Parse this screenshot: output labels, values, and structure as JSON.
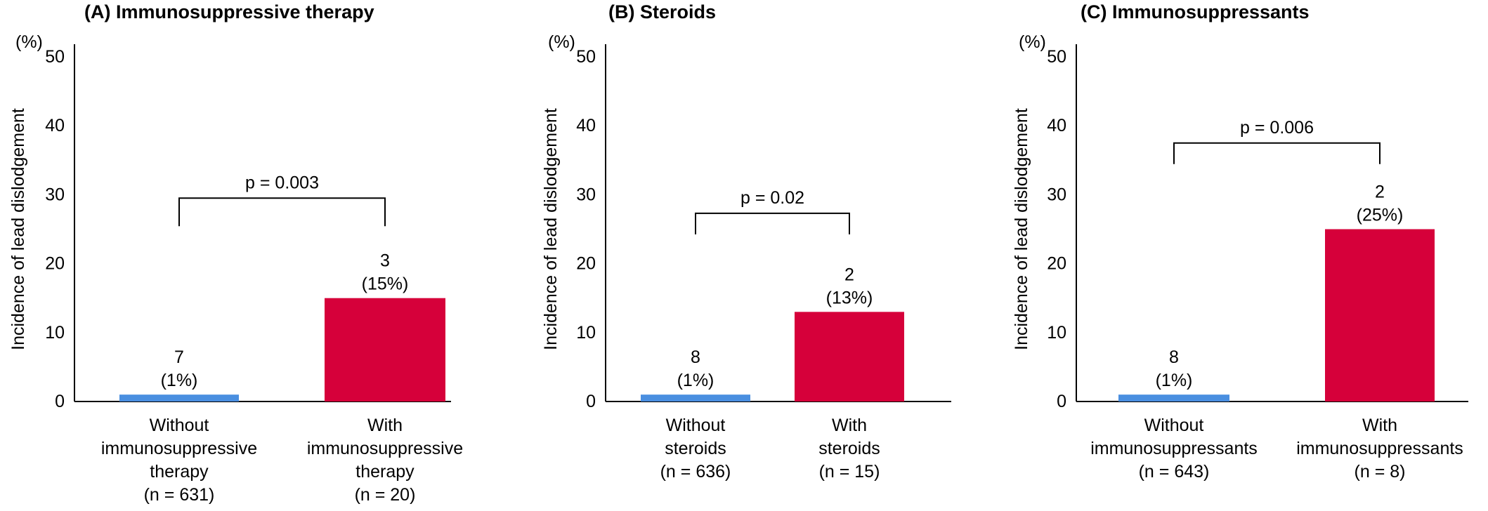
{
  "chart_data": [
    {
      "type": "bar",
      "title": "(A) Immunosuppressive therapy",
      "unit_label": "(%)",
      "ylabel": "Incidence of lead dislodgement",
      "ylim": [
        0,
        50
      ],
      "yticks": [
        "0",
        "10",
        "20",
        "30",
        "40",
        "50"
      ],
      "categories": [
        [
          "Without",
          "immunosuppressive",
          "therapy",
          "(n = 631)"
        ],
        [
          "With",
          "immunosuppressive",
          "therapy",
          "(n = 20)"
        ]
      ],
      "values": [
        1,
        15
      ],
      "data_labels": [
        [
          "7",
          "(1%)"
        ],
        [
          "3",
          "(15%)"
        ]
      ],
      "colors": [
        "#4a8fe0",
        "#d6003a"
      ],
      "p_value": "p = 0.003",
      "p_bracket_y": 29.5
    },
    {
      "type": "bar",
      "title": "(B) Steroids",
      "unit_label": "(%)",
      "ylabel": "Incidence of lead dislodgement",
      "ylim": [
        0,
        50
      ],
      "yticks": [
        "0",
        "10",
        "20",
        "30",
        "40",
        "50"
      ],
      "categories": [
        [
          "Without",
          "steroids",
          "(n = 636)"
        ],
        [
          "With",
          "steroids",
          "(n = 15)"
        ]
      ],
      "values": [
        1,
        13
      ],
      "data_labels": [
        [
          "8",
          "(1%)"
        ],
        [
          "2",
          "(13%)"
        ]
      ],
      "colors": [
        "#4a8fe0",
        "#d6003a"
      ],
      "p_value": "p = 0.02",
      "p_bracket_y": 27.3
    },
    {
      "type": "bar",
      "title": "(C) Immunosuppressants",
      "unit_label": "(%)",
      "ylabel": "Incidence of lead dislodgement",
      "ylim": [
        0,
        50
      ],
      "yticks": [
        "0",
        "10",
        "20",
        "30",
        "40",
        "50"
      ],
      "categories": [
        [
          "Without",
          "immunosuppressants",
          "(n = 643)"
        ],
        [
          "With",
          "immunosuppressants",
          "(n = 8)"
        ]
      ],
      "values": [
        1,
        25
      ],
      "data_labels": [
        [
          "8",
          "(1%)"
        ],
        [
          "2",
          "(25%)"
        ]
      ],
      "colors": [
        "#4a8fe0",
        "#d6003a"
      ],
      "p_value": "p = 0.006",
      "p_bracket_y": 37.5
    }
  ]
}
